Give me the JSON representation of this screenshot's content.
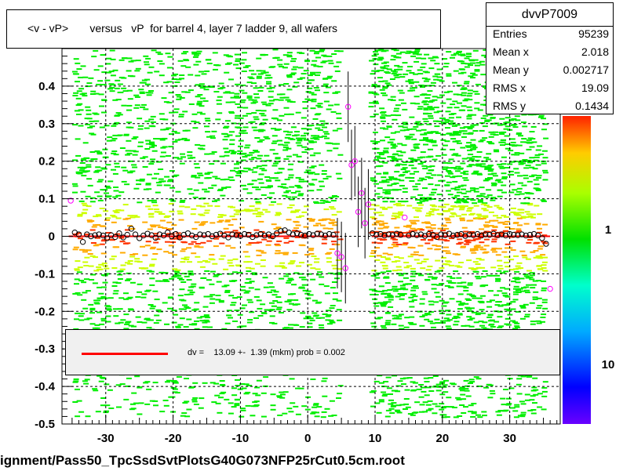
{
  "chart_data": {
    "type": "scatter",
    "title": "<v - vP>       versus   vP  for barrel 4, layer 7 ladder 9, all wafers",
    "x_ticks": [
      "-30",
      "-20",
      "-10",
      "0",
      "10",
      "20",
      "30"
    ],
    "y_ticks": [
      "-0.5",
      "-0.4",
      "-0.3",
      "-0.2",
      "-0.1",
      "0",
      "0.1",
      "0.2",
      "0.3",
      "0.4"
    ],
    "xlim": [
      -36.5,
      37.5
    ],
    "ylim": [
      -0.5,
      0.5
    ],
    "grid": true,
    "palette_labels": [
      "1",
      "10"
    ],
    "fit_color": "#ff0000",
    "marker_color": "#ff00ff",
    "profile_points": [
      {
        "x": -35.2,
        "y": 0.095
      },
      {
        "x": -34.6,
        "y": 0.01
      },
      {
        "x": -34.0,
        "y": 0.005
      },
      {
        "x": -33.4,
        "y": -0.015
      },
      {
        "x": -32.8,
        "y": 0.005
      },
      {
        "x": -32.2,
        "y": 0.0
      },
      {
        "x": -31.6,
        "y": 0.003
      },
      {
        "x": -31.0,
        "y": 0.005
      },
      {
        "x": -30.4,
        "y": 0.002
      },
      {
        "x": -29.8,
        "y": -0.005
      },
      {
        "x": -29.2,
        "y": 0.003
      },
      {
        "x": -28.6,
        "y": -0.002
      },
      {
        "x": -28.0,
        "y": 0.008
      },
      {
        "x": -27.4,
        "y": -0.003
      },
      {
        "x": -26.8,
        "y": 0.004
      },
      {
        "x": -26.2,
        "y": 0.02
      },
      {
        "x": -25.6,
        "y": 0.005
      },
      {
        "x": -25.0,
        "y": -0.005
      },
      {
        "x": -24.4,
        "y": 0.002
      },
      {
        "x": -23.8,
        "y": 0.007
      },
      {
        "x": -23.2,
        "y": 0.003
      },
      {
        "x": -22.6,
        "y": -0.004
      },
      {
        "x": -22.0,
        "y": 0.005
      },
      {
        "x": -21.4,
        "y": 0.002
      },
      {
        "x": -20.8,
        "y": 0.01
      },
      {
        "x": -20.2,
        "y": 0.0
      },
      {
        "x": -19.6,
        "y": 0.006
      },
      {
        "x": -19.0,
        "y": -0.003
      },
      {
        "x": -18.4,
        "y": 0.004
      },
      {
        "x": -17.8,
        "y": 0.008
      },
      {
        "x": -17.2,
        "y": 0.002
      },
      {
        "x": -16.6,
        "y": -0.002
      },
      {
        "x": -16.0,
        "y": 0.005
      },
      {
        "x": -15.4,
        "y": 0.003
      },
      {
        "x": -14.8,
        "y": 0.006
      },
      {
        "x": -14.2,
        "y": 0.0
      },
      {
        "x": -13.6,
        "y": 0.004
      },
      {
        "x": -13.0,
        "y": 0.007
      },
      {
        "x": -12.4,
        "y": 0.002
      },
      {
        "x": -11.8,
        "y": -0.003
      },
      {
        "x": -11.2,
        "y": 0.005
      },
      {
        "x": -10.6,
        "y": 0.003
      },
      {
        "x": -10.0,
        "y": 0.001
      },
      {
        "x": -9.4,
        "y": 0.006
      },
      {
        "x": -8.8,
        "y": 0.004
      },
      {
        "x": -8.2,
        "y": -0.002
      },
      {
        "x": -7.6,
        "y": 0.003
      },
      {
        "x": -7.0,
        "y": 0.006
      },
      {
        "x": -6.4,
        "y": 0.002
      },
      {
        "x": -5.8,
        "y": 0.005
      },
      {
        "x": -5.2,
        "y": 0.0
      },
      {
        "x": -4.6,
        "y": 0.008
      },
      {
        "x": -4.0,
        "y": 0.014
      },
      {
        "x": -3.4,
        "y": 0.016
      },
      {
        "x": -2.8,
        "y": 0.01
      },
      {
        "x": -2.2,
        "y": 0.005
      },
      {
        "x": -1.6,
        "y": 0.008
      },
      {
        "x": -1.0,
        "y": 0.004
      },
      {
        "x": -0.4,
        "y": 0.002
      },
      {
        "x": 0.2,
        "y": 0.006
      },
      {
        "x": 0.8,
        "y": 0.003
      },
      {
        "x": 1.4,
        "y": 0.007
      },
      {
        "x": 2.0,
        "y": 0.005
      },
      {
        "x": 2.6,
        "y": 0.002
      },
      {
        "x": 3.2,
        "y": 0.006
      },
      {
        "x": 3.8,
        "y": 0.004
      },
      {
        "x": 4.4,
        "y": -0.045
      },
      {
        "x": 5.0,
        "y": -0.055
      },
      {
        "x": 5.6,
        "y": -0.085
      },
      {
        "x": 6.0,
        "y": 0.345
      },
      {
        "x": 6.5,
        "y": 0.19
      },
      {
        "x": 7.0,
        "y": 0.2
      },
      {
        "x": 7.5,
        "y": 0.065
      },
      {
        "x": 8.0,
        "y": 0.115
      },
      {
        "x": 8.5,
        "y": 0.035
      },
      {
        "x": 9.0,
        "y": 0.085
      },
      {
        "x": 9.6,
        "y": 0.008
      },
      {
        "x": 10.2,
        "y": 0.004
      },
      {
        "x": 10.8,
        "y": 0.006
      },
      {
        "x": 11.4,
        "y": 0.002
      },
      {
        "x": 12.0,
        "y": 0.005
      },
      {
        "x": 12.6,
        "y": 0.003
      },
      {
        "x": 13.2,
        "y": 0.007
      },
      {
        "x": 13.8,
        "y": 0.004
      },
      {
        "x": 14.4,
        "y": 0.05
      },
      {
        "x": 15.0,
        "y": 0.002
      },
      {
        "x": 15.6,
        "y": 0.006
      },
      {
        "x": 16.2,
        "y": 0.003
      },
      {
        "x": 16.8,
        "y": 0.005
      },
      {
        "x": 17.4,
        "y": 0.001
      },
      {
        "x": 18.0,
        "y": 0.006
      },
      {
        "x": 18.6,
        "y": 0.004
      },
      {
        "x": 19.2,
        "y": -0.002
      },
      {
        "x": 19.8,
        "y": 0.005
      },
      {
        "x": 20.4,
        "y": 0.003
      },
      {
        "x": 21.0,
        "y": 0.007
      },
      {
        "x": 21.6,
        "y": 0.002
      },
      {
        "x": 22.2,
        "y": 0.004
      },
      {
        "x": 22.8,
        "y": 0.006
      },
      {
        "x": 23.4,
        "y": 0.001
      },
      {
        "x": 24.0,
        "y": 0.005
      },
      {
        "x": 24.6,
        "y": 0.003
      },
      {
        "x": 25.2,
        "y": 0.006
      },
      {
        "x": 25.8,
        "y": 0.002
      },
      {
        "x": 26.4,
        "y": 0.005
      },
      {
        "x": 27.0,
        "y": 0.004
      },
      {
        "x": 27.6,
        "y": 0.007
      },
      {
        "x": 28.2,
        "y": 0.003
      },
      {
        "x": 28.8,
        "y": 0.005
      },
      {
        "x": 29.4,
        "y": 0.002
      },
      {
        "x": 30.0,
        "y": 0.006
      },
      {
        "x": 30.6,
        "y": 0.004
      },
      {
        "x": 31.2,
        "y": 0.003
      },
      {
        "x": 31.8,
        "y": 0.005
      },
      {
        "x": 32.4,
        "y": 0.002
      },
      {
        "x": 33.0,
        "y": 0.004
      },
      {
        "x": 33.6,
        "y": 0.006
      },
      {
        "x": 34.2,
        "y": 0.002
      },
      {
        "x": 34.8,
        "y": -0.005
      },
      {
        "x": 35.4,
        "y": -0.02
      },
      {
        "x": 36.0,
        "y": -0.14
      }
    ],
    "fit_segments": [
      [
        -35.5,
        4.5
      ],
      [
        9.5,
        36.0
      ]
    ],
    "fit_y": 0.0
  },
  "stats": {
    "title": "dvvP7009",
    "rows": [
      {
        "key": "Entries",
        "value": "95239"
      },
      {
        "key": "Mean x",
        "value": "2.018"
      },
      {
        "key": "Mean y",
        "value": "0.002717"
      },
      {
        "key": "RMS x",
        "value": "19.09"
      },
      {
        "key": "RMS y",
        "value": "0.1434"
      }
    ]
  },
  "legend": {
    "fit_text": "dv =    13.09 +-  1.39 (mkm) prob = 0.002"
  },
  "footer": "ignment/Pass50_TpcSsdSvtPlotsG40G073NFP25rCut0.5cm.root"
}
